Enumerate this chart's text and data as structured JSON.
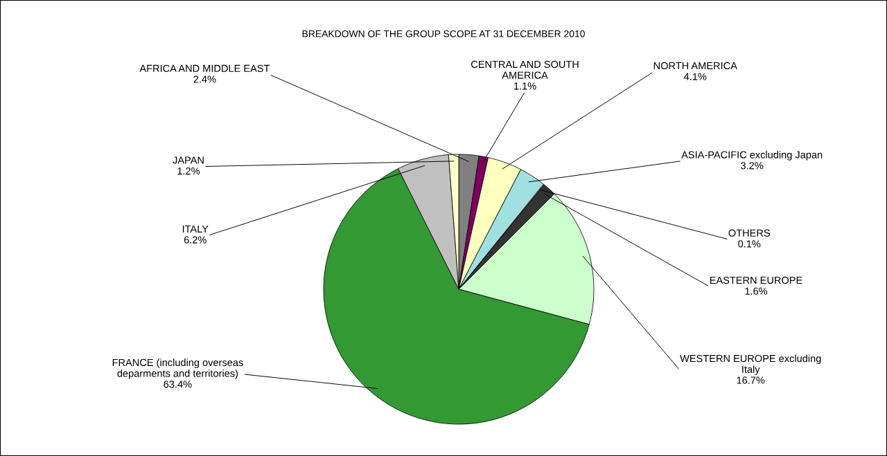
{
  "chart_data": {
    "type": "pie",
    "title": "BREAKDOWN OF THE GROUP SCOPE AT 31 DECEMBER 2010",
    "categories": [
      "AFRICA AND MIDDLE EAST",
      "CENTRAL AND SOUTH\nAMERICA",
      "NORTH AMERICA",
      "ASIA-PACIFIC excluding Japan",
      "OTHERS",
      "EASTERN EUROPE",
      "WESTERN EUROPE excluding\nItaly",
      "FRANCE (including overseas\ndeparments and territories)",
      "ITALY",
      "JAPAN"
    ],
    "values": [
      2.4,
      1.1,
      4.1,
      3.2,
      0.1,
      1.6,
      16.7,
      63.4,
      6.2,
      1.2
    ],
    "colors": [
      "#808080",
      "#800060",
      "#ffffc0",
      "#a0e0e0",
      "#ffcc99",
      "#333333",
      "#ccffcc",
      "#339933",
      "#c0c0c0",
      "#ffffcc"
    ],
    "value_labels": [
      "2.4%",
      "1.1%",
      "4.1%",
      "3.2%",
      "0.1%",
      "1.6%",
      "16.7%",
      "63.4%",
      "6.2%",
      "1.2%"
    ],
    "legend": false
  }
}
